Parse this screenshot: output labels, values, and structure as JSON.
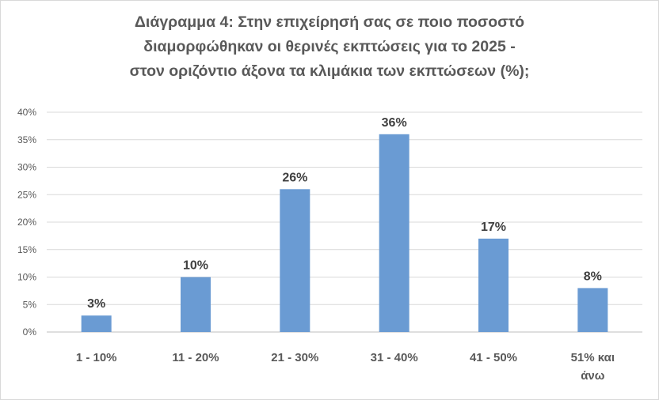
{
  "chart_data": {
    "type": "bar",
    "title_lines": [
      "Διάγραμμα 4: Στην επιχείρησή σας σε ποιο ποσοστό",
      "διαμορφώθηκαν οι θερινές εκπτώσεις για το 2025 -",
      "στον οριζόντιο άξονα τα κλιμάκια των εκπτώσεων (%);"
    ],
    "categories": [
      [
        "1 - 10%"
      ],
      [
        "11 - 20%"
      ],
      [
        "21 - 30%"
      ],
      [
        "31 - 40%"
      ],
      [
        "41 - 50%"
      ],
      [
        "51% και",
        "άνω"
      ]
    ],
    "values": [
      3,
      10,
      26,
      36,
      17,
      8
    ],
    "data_labels": [
      "3%",
      "10%",
      "26%",
      "36%",
      "17%",
      "8%"
    ],
    "y_ticks": [
      "0%",
      "5%",
      "10%",
      "15%",
      "20%",
      "25%",
      "30%",
      "35%",
      "40%"
    ],
    "ylim": [
      0,
      40
    ],
    "grid": true,
    "legend": false,
    "bar_color": "#6a9bd3",
    "grid_color": "#d9d9d9",
    "text_color": "#595959"
  }
}
